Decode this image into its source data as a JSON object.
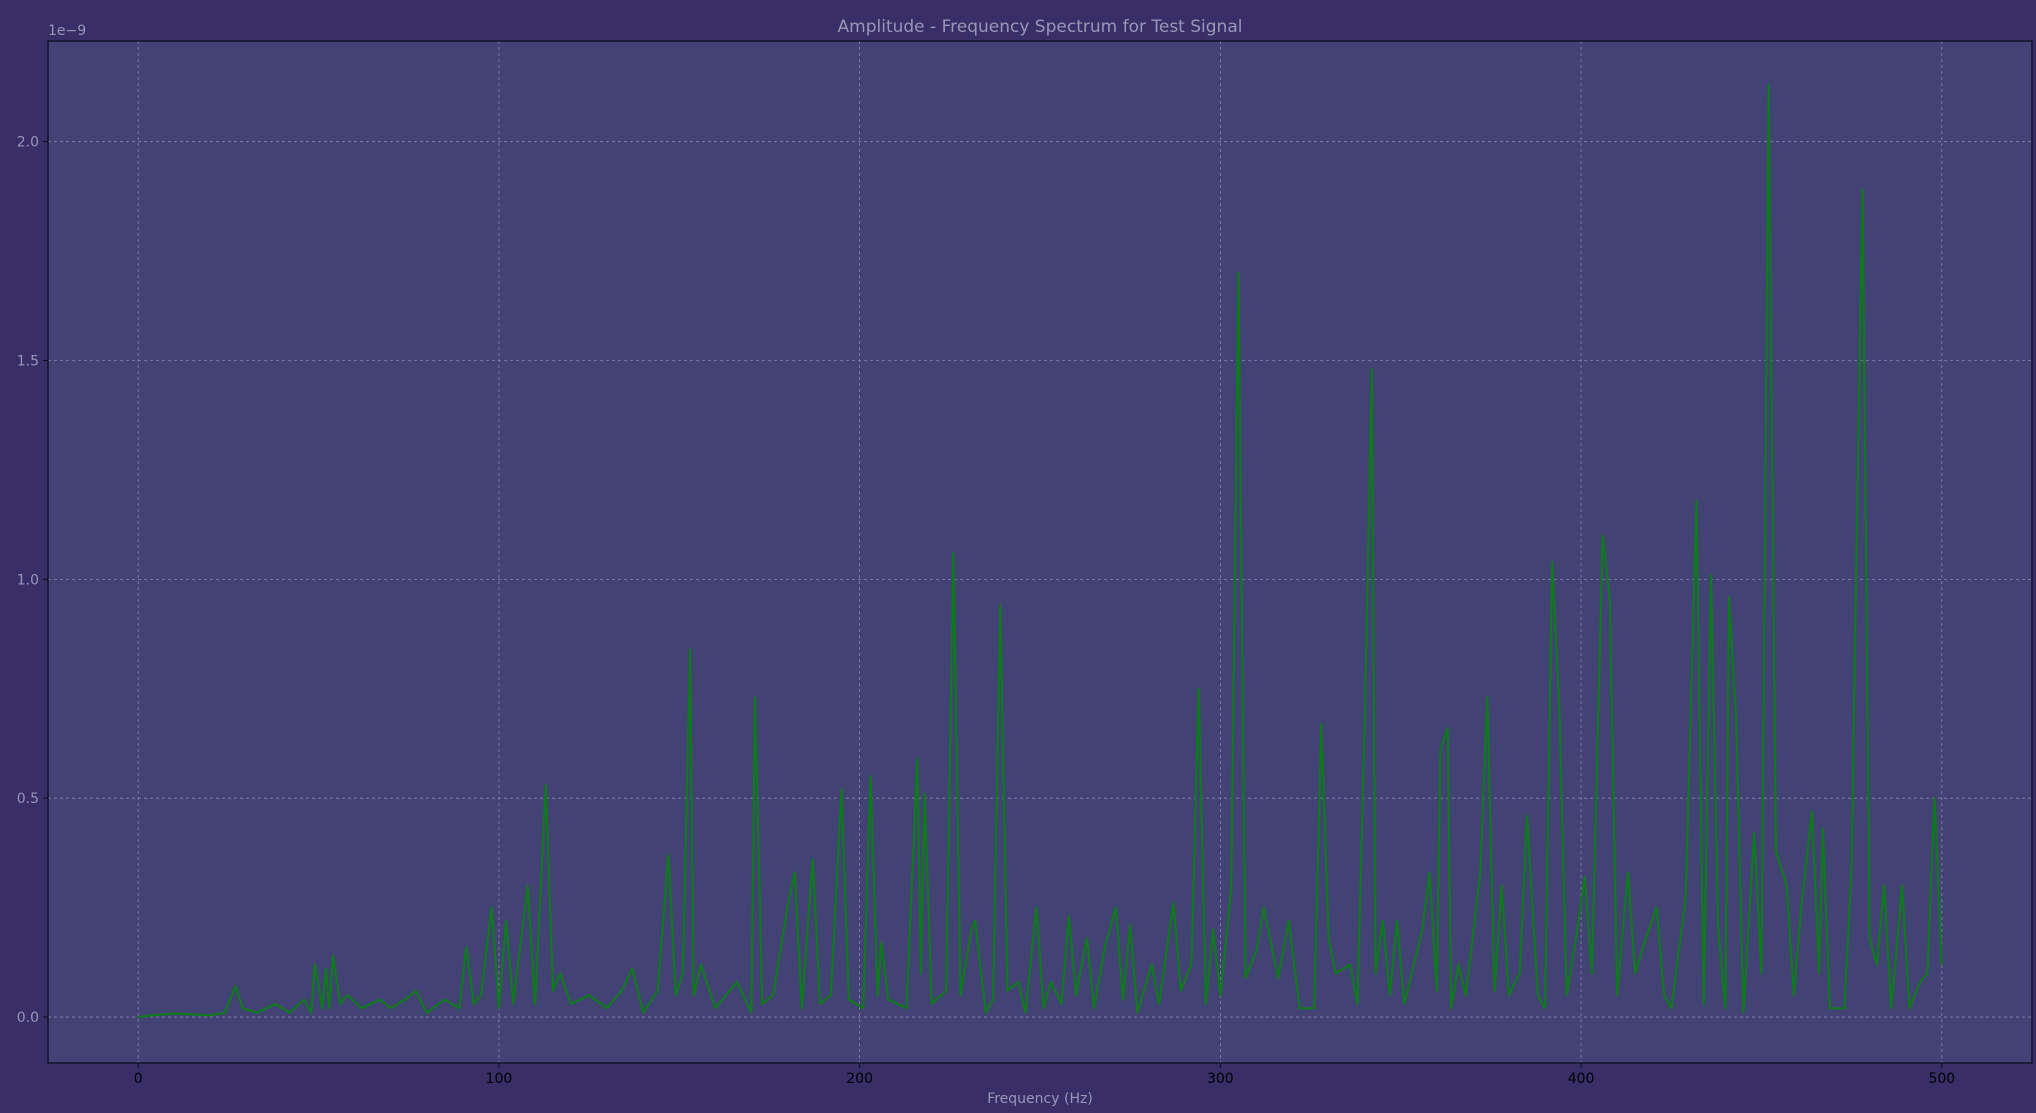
{
  "colors": {
    "figure_bg": "#392e68",
    "axes_bg": "#424274",
    "line": "#0f7a1b",
    "grid": "#8a86a8",
    "text": "#9a96b6",
    "xtick_text": "#000000",
    "spine": "#0d0c1e"
  },
  "chart_data": {
    "type": "line",
    "title": "Amplitude - Frequency Spectrum for Test Signal",
    "xlabel": "Frequency (Hz)",
    "ylabel": "",
    "y_offset_text": "1e−9",
    "y_scale_factor": 1e-09,
    "xlim": [
      -25,
      525
    ],
    "ylim": [
      -0.105,
      2.23
    ],
    "xticks": [
      0,
      100,
      200,
      300,
      400,
      500
    ],
    "xtick_labels": [
      "0",
      "100",
      "200",
      "300",
      "400",
      "500"
    ],
    "yticks": [
      0.0,
      0.5,
      1.0,
      1.5,
      2.0
    ],
    "ytick_labels": [
      "0.0",
      "0.5",
      "1.0",
      "1.5",
      "2.0"
    ],
    "grid": true,
    "legend": "none",
    "series": [
      {
        "points": [
          [
            0,
            0
          ],
          [
            5,
            0.005
          ],
          [
            10,
            0.008
          ],
          [
            15,
            0.006
          ],
          [
            20,
            0.004
          ],
          [
            24,
            0.01
          ],
          [
            27,
            0.07
          ],
          [
            29,
            0.02
          ],
          [
            33,
            0.01
          ],
          [
            38,
            0.03
          ],
          [
            42,
            0.01
          ],
          [
            46,
            0.04
          ],
          [
            48,
            0.01
          ],
          [
            49,
            0.12
          ],
          [
            51,
            0.02
          ],
          [
            52,
            0.11
          ],
          [
            53,
            0.02
          ],
          [
            54,
            0.14
          ],
          [
            56,
            0.03
          ],
          [
            58,
            0.05
          ],
          [
            62,
            0.02
          ],
          [
            67,
            0.04
          ],
          [
            70,
            0.02
          ],
          [
            74,
            0.04
          ],
          [
            77,
            0.06
          ],
          [
            80,
            0.01
          ],
          [
            85,
            0.04
          ],
          [
            89,
            0.02
          ],
          [
            91,
            0.16
          ],
          [
            93,
            0.03
          ],
          [
            95,
            0.05
          ],
          [
            98,
            0.25
          ],
          [
            100,
            0.02
          ],
          [
            102,
            0.22
          ],
          [
            104,
            0.03
          ],
          [
            108,
            0.3
          ],
          [
            110,
            0.03
          ],
          [
            113,
            0.53
          ],
          [
            115,
            0.06
          ],
          [
            117,
            0.1
          ],
          [
            120,
            0.03
          ],
          [
            125,
            0.05
          ],
          [
            130,
            0.02
          ],
          [
            134,
            0.06
          ],
          [
            137,
            0.11
          ],
          [
            140,
            0.01
          ],
          [
            144,
            0.06
          ],
          [
            147,
            0.37
          ],
          [
            149,
            0.05
          ],
          [
            151,
            0.1
          ],
          [
            153,
            0.84
          ],
          [
            154,
            0.05
          ],
          [
            156,
            0.12
          ],
          [
            160,
            0.02
          ],
          [
            166,
            0.08
          ],
          [
            170,
            0.01
          ],
          [
            171,
            0.73
          ],
          [
            173,
            0.03
          ],
          [
            176,
            0.05
          ],
          [
            180,
            0.25
          ],
          [
            182,
            0.33
          ],
          [
            184,
            0.02
          ],
          [
            187,
            0.36
          ],
          [
            189,
            0.03
          ],
          [
            192,
            0.05
          ],
          [
            195,
            0.52
          ],
          [
            197,
            0.04
          ],
          [
            201,
            0.02
          ],
          [
            203,
            0.55
          ],
          [
            205,
            0.05
          ],
          [
            206,
            0.17
          ],
          [
            208,
            0.04
          ],
          [
            213,
            0.02
          ],
          [
            216,
            0.59
          ],
          [
            217,
            0.1
          ],
          [
            218,
            0.51
          ],
          [
            220,
            0.03
          ],
          [
            224,
            0.06
          ],
          [
            226,
            1.06
          ],
          [
            228,
            0.05
          ],
          [
            231,
            0.2
          ],
          [
            232,
            0.22
          ],
          [
            235,
            0.01
          ],
          [
            237,
            0.04
          ],
          [
            239,
            0.94
          ],
          [
            241,
            0.06
          ],
          [
            244,
            0.08
          ],
          [
            246,
            0.01
          ],
          [
            249,
            0.25
          ],
          [
            251,
            0.02
          ],
          [
            253,
            0.08
          ],
          [
            256,
            0.03
          ],
          [
            258,
            0.23
          ],
          [
            260,
            0.05
          ],
          [
            263,
            0.18
          ],
          [
            265,
            0.02
          ],
          [
            268,
            0.16
          ],
          [
            271,
            0.25
          ],
          [
            273,
            0.04
          ],
          [
            275,
            0.21
          ],
          [
            277,
            0.01
          ],
          [
            281,
            0.12
          ],
          [
            283,
            0.03
          ],
          [
            287,
            0.26
          ],
          [
            289,
            0.06
          ],
          [
            292,
            0.12
          ],
          [
            294,
            0.75
          ],
          [
            296,
            0.03
          ],
          [
            298,
            0.2
          ],
          [
            300,
            0.05
          ],
          [
            303,
            0.29
          ],
          [
            305,
            1.7
          ],
          [
            307,
            0.09
          ],
          [
            310,
            0.15
          ],
          [
            312,
            0.25
          ],
          [
            316,
            0.09
          ],
          [
            319,
            0.22
          ],
          [
            322,
            0.02
          ],
          [
            326,
            0.02
          ],
          [
            328,
            0.67
          ],
          [
            330,
            0.18
          ],
          [
            332,
            0.1
          ],
          [
            336,
            0.12
          ],
          [
            338,
            0.03
          ],
          [
            340,
            0.67
          ],
          [
            342,
            1.48
          ],
          [
            343,
            0.1
          ],
          [
            345,
            0.22
          ],
          [
            347,
            0.05
          ],
          [
            349,
            0.22
          ],
          [
            351,
            0.03
          ],
          [
            356,
            0.2
          ],
          [
            358,
            0.33
          ],
          [
            360,
            0.06
          ],
          [
            361,
            0.61
          ],
          [
            363,
            0.66
          ],
          [
            364,
            0.02
          ],
          [
            366,
            0.12
          ],
          [
            368,
            0.05
          ],
          [
            372,
            0.32
          ],
          [
            374,
            0.73
          ],
          [
            376,
            0.06
          ],
          [
            378,
            0.3
          ],
          [
            380,
            0.05
          ],
          [
            383,
            0.1
          ],
          [
            385,
            0.46
          ],
          [
            388,
            0.05
          ],
          [
            390,
            0.02
          ],
          [
            392,
            1.04
          ],
          [
            394,
            0.7
          ],
          [
            396,
            0.05
          ],
          [
            399,
            0.2
          ],
          [
            401,
            0.32
          ],
          [
            403,
            0.1
          ],
          [
            406,
            1.1
          ],
          [
            408,
            0.95
          ],
          [
            410,
            0.05
          ],
          [
            413,
            0.33
          ],
          [
            415,
            0.1
          ],
          [
            418,
            0.18
          ],
          [
            421,
            0.25
          ],
          [
            423,
            0.05
          ],
          [
            425,
            0.02
          ],
          [
            429,
            0.27
          ],
          [
            432,
            1.18
          ],
          [
            434,
            0.03
          ],
          [
            436,
            1.01
          ],
          [
            438,
            0.2
          ],
          [
            440,
            0.02
          ],
          [
            441,
            0.96
          ],
          [
            443,
            0.68
          ],
          [
            445,
            0.01
          ],
          [
            448,
            0.42
          ],
          [
            450,
            0.1
          ],
          [
            452,
            2.13
          ],
          [
            454,
            0.38
          ],
          [
            457,
            0.3
          ],
          [
            459,
            0.05
          ],
          [
            461,
            0.25
          ],
          [
            464,
            0.47
          ],
          [
            466,
            0.1
          ],
          [
            467,
            0.43
          ],
          [
            469,
            0.02
          ],
          [
            473,
            0.02
          ],
          [
            475,
            0.34
          ],
          [
            476,
            0.88
          ],
          [
            478,
            1.89
          ],
          [
            480,
            0.18
          ],
          [
            482,
            0.12
          ],
          [
            484,
            0.3
          ],
          [
            486,
            0.02
          ],
          [
            489,
            0.3
          ],
          [
            491,
            0.02
          ],
          [
            494,
            0.08
          ],
          [
            496,
            0.1
          ],
          [
            498,
            0.5
          ],
          [
            500,
            0.12
          ]
        ]
      }
    ]
  }
}
